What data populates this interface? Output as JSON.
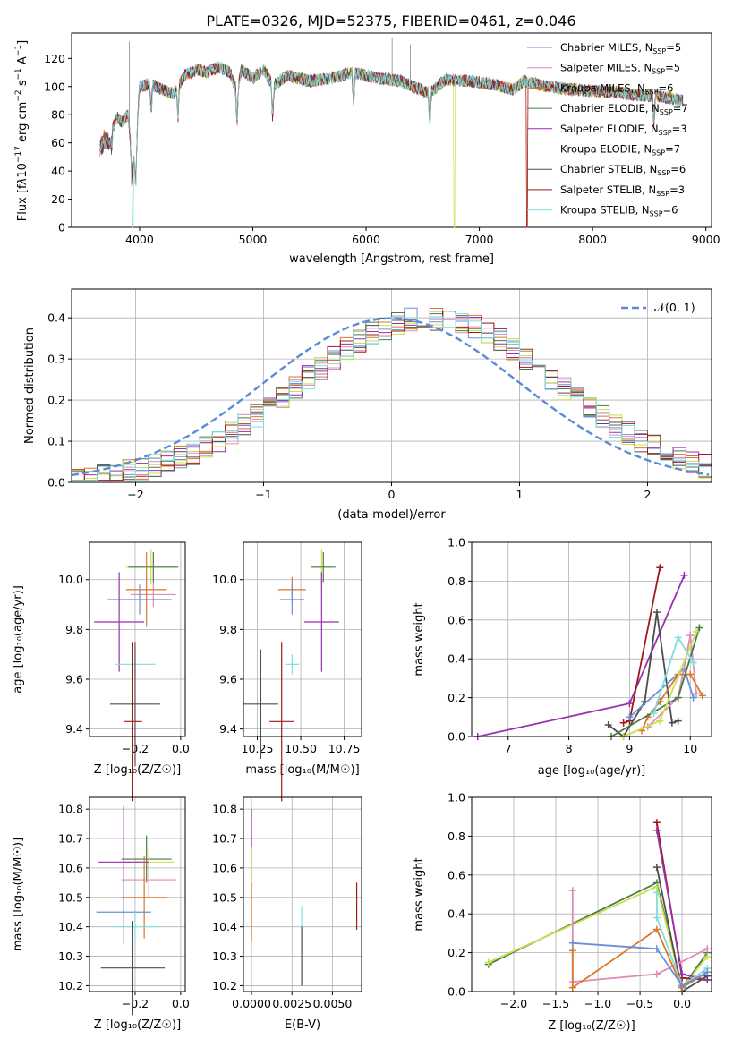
{
  "title": "PLATE=0326, MJD=52375, FIBERID=0461, z=0.046",
  "colors": {
    "Chabrier MILES": "#6b8fd6",
    "Salpeter MILES": "#e08ab8",
    "Kroupa MILES": "#d9772a",
    "Chabrier ELODIE": "#4a7a4a",
    "Salpeter ELODIE": "#9a2fb0",
    "Kroupa ELODIE": "#c8e04a",
    "Chabrier STELIB": "#4d4d4d",
    "Salpeter STELIB": "#a01a1a",
    "Kroupa STELIB": "#7fdede"
  },
  "panels": {
    "spectrum": {
      "xlabel": "wavelength [Angstrom, rest frame]",
      "ylabel_html": "Flux [f<tspan font-style='italic'>λ</tspan>10<tspan dy='-6' font-size='9'>−17</tspan><tspan dy='6'> erg cm</tspan><tspan dy='-6' font-size='9'>−2</tspan><tspan dy='6'> s</tspan><tspan dy='-6' font-size='9'>−1</tspan><tspan dy='6'> A</tspan><tspan dy='-6' font-size='9'>−1</tspan><tspan dy='6'>]</tspan>",
      "legend": [
        {
          "label": "Chabrier MILES, N",
          "sub": "SSP",
          "suffix": "=5"
        },
        {
          "label": "Salpeter MILES, N",
          "sub": "SSP",
          "suffix": "=5"
        },
        {
          "label": "Kroupa MILES, N",
          "sub": "SSP",
          "suffix": "=6"
        },
        {
          "label": "Chabrier ELODIE, N",
          "sub": "SSP",
          "suffix": "=7"
        },
        {
          "label": "Salpeter ELODIE, N",
          "sub": "SSP",
          "suffix": "=3"
        },
        {
          "label": "Kroupa ELODIE, N",
          "sub": "SSP",
          "suffix": "=7"
        },
        {
          "label": "Chabrier STELIB, N",
          "sub": "SSP",
          "suffix": "=6"
        },
        {
          "label": "Salpeter STELIB, N",
          "sub": "SSP",
          "suffix": "=3"
        },
        {
          "label": "Kroupa STELIB, N",
          "sub": "SSP",
          "suffix": "=6"
        }
      ],
      "xticks": [
        4000,
        5000,
        6000,
        7000,
        8000,
        9000
      ],
      "yticks": [
        0,
        20,
        40,
        60,
        80,
        100,
        120
      ]
    },
    "residuals": {
      "xlabel": "(data-model)/error",
      "ylabel": "Normed distribution",
      "legend": "𝒩(0, 1)",
      "xticks": [
        "−2",
        "−1",
        "0",
        "1",
        "2"
      ],
      "yticks": [
        "0.0",
        "0.1",
        "0.2",
        "0.3",
        "0.4"
      ]
    },
    "age_Z": {
      "xlabel": "Z [log₁₀(Z/Z☉)]",
      "ylabel": "age  [log₁₀(age/yr)]"
    },
    "age_mass": {
      "xlabel": "mass [log₁₀(M/M☉)]"
    },
    "mw_age": {
      "xlabel": "age  [log₁₀(age/yr)]",
      "ylabel": "mass weight"
    },
    "mass_Z": {
      "xlabel": "Z [log₁₀(Z/Z☉)]",
      "ylabel": "mass [log₁₀(M/M☉)]"
    },
    "mass_ebv": {
      "xlabel": "E(B-V)"
    },
    "mw_Z": {
      "xlabel": "Z [log₁₀(Z/Z☉)]",
      "ylabel": "mass weight"
    }
  },
  "chart_data": [
    {
      "type": "line",
      "title": "PLATE=0326, MJD=52375, FIBERID=0461, z=0.046",
      "xlabel": "wavelength [Angstrom, rest frame]",
      "ylabel": "Flux [fλ10−17 erg cm−2 s−1 A−1]",
      "xlim": [
        3400,
        9050
      ],
      "ylim": [
        0,
        138
      ],
      "series_names": [
        "Chabrier MILES, NSSP=5",
        "Salpeter MILES, NSSP=5",
        "Kroupa MILES, NSSP=6",
        "Chabrier ELODIE, NSSP=7",
        "Salpeter ELODIE, NSSP=3",
        "Kroupa ELODIE, NSSP=7",
        "Chabrier STELIB, NSSP=6",
        "Salpeter STELIB, NSSP=3",
        "Kroupa STELIB, NSSP=6"
      ],
      "envelope": {
        "x": [
          3650,
          3700,
          3750,
          3800,
          3850,
          3900,
          3930,
          3960,
          4000,
          4100,
          4200,
          4300,
          4400,
          4500,
          4600,
          4700,
          4800,
          4861,
          4900,
          5000,
          5100,
          5175,
          5300,
          5500,
          5700,
          5900,
          6100,
          6300,
          6563,
          6700,
          6900,
          7100,
          7300,
          7400,
          7600,
          7800,
          8000,
          8200,
          8400,
          8600,
          8800
        ],
        "y": [
          65,
          72,
          68,
          78,
          75,
          80,
          52,
          45,
          100,
          102,
          98,
          95,
          108,
          112,
          110,
          114,
          110,
          96,
          112,
          106,
          112,
          100,
          108,
          104,
          106,
          110,
          106,
          104,
          95,
          105,
          104,
          102,
          98,
          104,
          100,
          98,
          97,
          96,
          94,
          93,
          90
        ]
      },
      "edge_drop": {
        "Kroupa ELODIE": 6780,
        "Kroupa MILES": 7420,
        "Salpeter STELIB": 7420,
        "Kroupa STELIB": 3940
      }
    },
    {
      "type": "line",
      "xlabel": "(data-model)/error",
      "ylabel": "Normed distribution",
      "xlim": [
        -2.5,
        2.5
      ],
      "ylim": [
        0,
        0.47
      ],
      "gaussian_name": "𝒩(0, 1)",
      "bin_width": 0.1,
      "hist_center": 0.3,
      "hist_sigma": 1.0,
      "hist_peak": 0.4,
      "series_names": [
        "Chabrier MILES",
        "Salpeter MILES",
        "Kroupa MILES",
        "Chabrier ELODIE",
        "Salpeter ELODIE",
        "Kroupa ELODIE",
        "Chabrier STELIB",
        "Salpeter STELIB",
        "Kroupa STELIB"
      ]
    },
    {
      "type": "scatter",
      "xlabel": "Z [log10(Z/Z☉)]",
      "ylabel": "age  [log10(age/yr)]",
      "xlim": [
        -0.4,
        0.02
      ],
      "ylim": [
        9.37,
        10.15
      ],
      "points": [
        {
          "model": "Kroupa ELODIE",
          "x": -0.13,
          "y": 10.05,
          "xerr": 0.11,
          "yerr": 0.07
        },
        {
          "model": "Chabrier ELODIE",
          "x": -0.12,
          "y": 10.05,
          "xerr": 0.11,
          "yerr": 0.06
        },
        {
          "model": "Salpeter MILES",
          "x": -0.12,
          "y": 9.94,
          "xerr": 0.1,
          "yerr": 0.05
        },
        {
          "model": "Kroupa MILES",
          "x": -0.15,
          "y": 9.96,
          "xerr": 0.09,
          "yerr": 0.15
        },
        {
          "model": "Chabrier MILES",
          "x": -0.18,
          "y": 9.92,
          "xerr": 0.14,
          "yerr": 0.06
        },
        {
          "model": "Salpeter ELODIE",
          "x": -0.27,
          "y": 9.83,
          "xerr": 0.11,
          "yerr": 0.2
        },
        {
          "model": "Kroupa STELIB",
          "x": -0.2,
          "y": 9.66,
          "xerr": 0.09,
          "yerr": 0.06
        },
        {
          "model": "Chabrier STELIB",
          "x": -0.2,
          "y": 9.5,
          "xerr": 0.11,
          "yerr": 0.25
        },
        {
          "model": "Salpeter STELIB",
          "x": -0.21,
          "y": 9.43,
          "xerr": 0.04,
          "yerr": 0.32
        }
      ]
    },
    {
      "type": "scatter",
      "xlabel": "mass [log10(M/M☉)]",
      "xlim": [
        10.17,
        10.85
      ],
      "ylim": [
        9.37,
        10.15
      ],
      "points": [
        {
          "model": "Kroupa ELODIE",
          "x": 10.62,
          "y": 10.05,
          "xerr": 0.05,
          "yerr": 0.07
        },
        {
          "model": "Chabrier ELODIE",
          "x": 10.63,
          "y": 10.05,
          "xerr": 0.07,
          "yerr": 0.06
        },
        {
          "model": "Kroupa MILES",
          "x": 10.45,
          "y": 9.96,
          "xerr": 0.08,
          "yerr": 0.05
        },
        {
          "model": "Chabrier MILES",
          "x": 10.45,
          "y": 9.92,
          "xerr": 0.07,
          "yerr": 0.06
        },
        {
          "model": "Salpeter ELODIE",
          "x": 10.62,
          "y": 9.83,
          "xerr": 0.1,
          "yerr": 0.2
        },
        {
          "model": "Kroupa STELIB",
          "x": 10.45,
          "y": 9.66,
          "xerr": 0.04,
          "yerr": 0.04
        },
        {
          "model": "Chabrier STELIB",
          "x": 10.27,
          "y": 9.5,
          "xerr": 0.1,
          "yerr": 0.22
        },
        {
          "model": "Salpeter STELIB",
          "x": 10.39,
          "y": 9.43,
          "xerr": 0.07,
          "yerr": 0.32
        }
      ]
    },
    {
      "type": "line",
      "xlabel": "age  [log10(age/yr)]",
      "ylabel": "mass weight",
      "xlim": [
        6.4,
        10.35
      ],
      "ylim": [
        0,
        1
      ],
      "series": [
        {
          "model": "Salpeter ELODIE",
          "x": [
            6.5,
            9.0,
            9.9
          ],
          "y": [
            0.0,
            0.17,
            0.83
          ]
        },
        {
          "model": "Salpeter STELIB",
          "x": [
            8.9,
            9.0,
            9.5
          ],
          "y": [
            0.07,
            0.08,
            0.87
          ]
        },
        {
          "model": "Chabrier STELIB",
          "x": [
            8.65,
            8.9,
            9.25,
            9.45,
            9.7,
            9.8
          ],
          "y": [
            0.06,
            0.0,
            0.18,
            0.64,
            0.07,
            0.08
          ]
        },
        {
          "model": "Chabrier MILES",
          "x": [
            9.0,
            9.9,
            10.05
          ],
          "y": [
            0.1,
            0.35,
            0.2
          ]
        },
        {
          "model": "Salpeter MILES",
          "x": [
            9.3,
            9.8,
            10.0,
            10.1
          ],
          "y": [
            0.05,
            0.2,
            0.52,
            0.22
          ]
        },
        {
          "model": "Kroupa MILES",
          "x": [
            9.2,
            9.3,
            9.5,
            9.8,
            10.0,
            10.2
          ],
          "y": [
            0.03,
            0.1,
            0.18,
            0.32,
            0.32,
            0.21
          ]
        },
        {
          "model": "Chabrier ELODIE",
          "x": [
            8.7,
            9.8,
            10.15
          ],
          "y": [
            0.0,
            0.2,
            0.56
          ]
        },
        {
          "model": "Kroupa ELODIE",
          "x": [
            8.9,
            9.5,
            10.1
          ],
          "y": [
            0.0,
            0.08,
            0.54
          ]
        },
        {
          "model": "Kroupa STELIB",
          "x": [
            9.4,
            9.8,
            10.05
          ],
          "y": [
            0.12,
            0.51,
            0.38
          ]
        }
      ]
    },
    {
      "type": "scatter",
      "xlabel": "Z [log10(Z/Z☉)]",
      "ylabel": "mass [log10(M/M☉)]",
      "xlim": [
        -0.4,
        0.02
      ],
      "ylim": [
        10.18,
        10.84
      ],
      "points": [
        {
          "model": "Chabrier ELODIE",
          "x": -0.15,
          "y": 10.63,
          "xerr": 0.11,
          "yerr": 0.08
        },
        {
          "model": "Kroupa ELODIE",
          "x": -0.14,
          "y": 10.62,
          "xerr": 0.11,
          "yerr": 0.05
        },
        {
          "model": "Salpeter ELODIE",
          "x": -0.25,
          "y": 10.62,
          "xerr": 0.11,
          "yerr": 0.19
        },
        {
          "model": "Salpeter MILES",
          "x": -0.14,
          "y": 10.56,
          "xerr": 0.12,
          "yerr": 0.06
        },
        {
          "model": "Kroupa MILES",
          "x": -0.16,
          "y": 10.5,
          "xerr": 0.1,
          "yerr": 0.14
        },
        {
          "model": "Chabrier MILES",
          "x": -0.25,
          "y": 10.45,
          "xerr": 0.12,
          "yerr": 0.11
        },
        {
          "model": "Kroupa STELIB",
          "x": -0.2,
          "y": 10.4,
          "xerr": 0.1,
          "yerr": 0.05
        },
        {
          "model": "Chabrier STELIB",
          "x": -0.21,
          "y": 10.26,
          "xerr": 0.14,
          "yerr": 0.16
        }
      ]
    },
    {
      "type": "scatter",
      "xlabel": "E(B-V)",
      "xlim": [
        -0.0005,
        0.0068
      ],
      "ylim": [
        10.18,
        10.84
      ],
      "xticks": [
        "0.0000",
        "0.0025",
        "0.0050"
      ],
      "points": [
        {
          "model": "Salpeter ELODIE",
          "x": 0.0,
          "y": 10.68,
          "yerr": 0.12
        },
        {
          "model": "Kroupa ELODIE",
          "x": 0.0,
          "y": 10.6,
          "yerr": 0.07
        },
        {
          "model": "Kroupa MILES",
          "x": 0.0,
          "y": 10.45,
          "yerr": 0.1
        },
        {
          "model": "Kroupa STELIB",
          "x": 0.0031,
          "y": 10.4,
          "yerr": 0.07
        },
        {
          "model": "Chabrier STELIB",
          "x": 0.0031,
          "y": 10.3,
          "yerr": 0.1
        },
        {
          "model": "Salpeter STELIB",
          "x": 0.0065,
          "y": 10.47,
          "yerr": 0.08
        }
      ]
    },
    {
      "type": "line",
      "xlabel": "Z [log10(Z/Z☉)]",
      "ylabel": "mass weight",
      "xlim": [
        -2.5,
        0.35
      ],
      "ylim": [
        0,
        1
      ],
      "series": [
        {
          "model": "Chabrier ELODIE",
          "x": [
            -2.3,
            -0.3,
            0.0,
            0.3
          ],
          "y": [
            0.14,
            0.56,
            0.02,
            0.2
          ]
        },
        {
          "model": "Kroupa ELODIE",
          "x": [
            -2.3,
            -0.3,
            0.0,
            0.3
          ],
          "y": [
            0.15,
            0.54,
            0.02,
            0.18
          ]
        },
        {
          "model": "Salpeter STELIB",
          "x": [
            -0.3,
            0.0,
            0.3
          ],
          "y": [
            0.87,
            0.07,
            0.06
          ]
        },
        {
          "model": "Salpeter ELODIE",
          "x": [
            -0.3,
            0.0,
            0.3
          ],
          "y": [
            0.83,
            0.09,
            0.06
          ]
        },
        {
          "model": "Chabrier STELIB",
          "x": [
            -0.3,
            0.0,
            0.3
          ],
          "y": [
            0.64,
            0.0,
            0.08
          ]
        },
        {
          "model": "Kroupa STELIB",
          "x": [
            -0.3,
            -0.3,
            0.0,
            0.3
          ],
          "y": [
            0.51,
            0.38,
            0.03,
            0.12
          ]
        },
        {
          "model": "Salpeter MILES",
          "x": [
            -1.3,
            -1.3,
            -0.3,
            0.3
          ],
          "y": [
            0.52,
            0.05,
            0.09,
            0.22
          ]
        },
        {
          "model": "Kroupa MILES",
          "x": [
            -1.3,
            -1.3,
            -0.3,
            0.0,
            0.3
          ],
          "y": [
            0.21,
            0.02,
            0.32,
            0.02,
            0.1
          ]
        },
        {
          "model": "Chabrier MILES",
          "x": [
            -1.3,
            -0.3,
            0.0,
            0.3
          ],
          "y": [
            0.25,
            0.22,
            0.03,
            0.1
          ]
        }
      ]
    }
  ]
}
